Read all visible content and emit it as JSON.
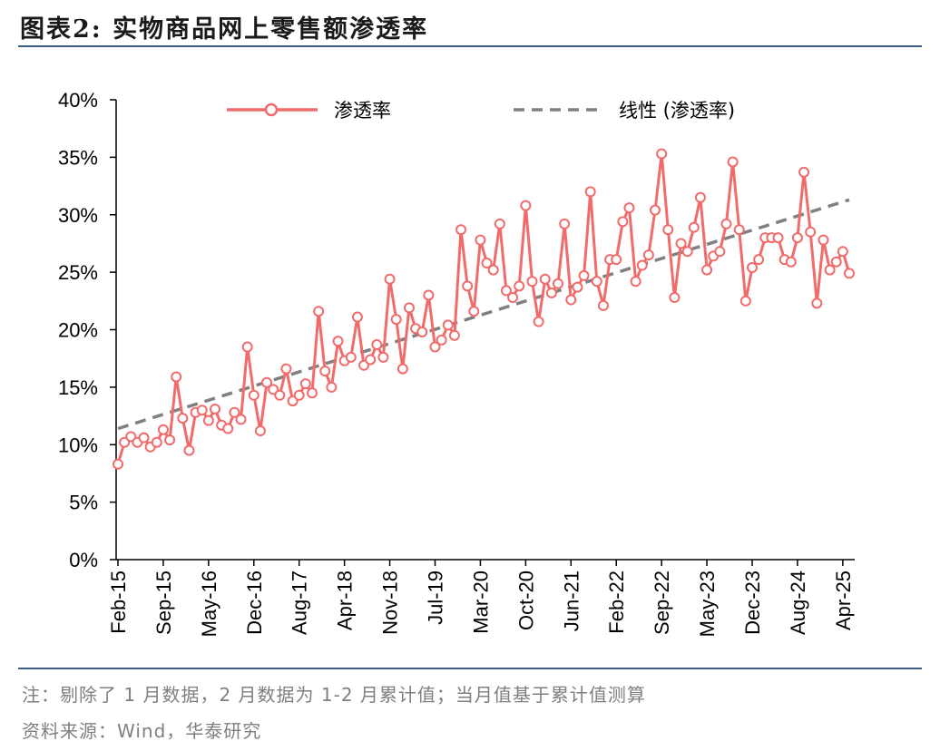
{
  "title": "图表2:  实物商品网上零售额渗透率",
  "footer": {
    "note": "注：剔除了 1 月数据，2 月数据为 1-2 月累计值；当月值基于累计值测算",
    "source": "资料来源：Wind，华泰研究"
  },
  "chart_data": {
    "type": "line",
    "ylim": [
      0,
      40
    ],
    "y_ticks": [
      "0%",
      "5%",
      "10%",
      "15%",
      "20%",
      "25%",
      "30%",
      "35%",
      "40%"
    ],
    "x_tick_labels": [
      "Feb-15",
      "Sep-15",
      "May-16",
      "Dec-16",
      "Aug-17",
      "Apr-18",
      "Nov-18",
      "Jul-19",
      "Mar-20",
      "Oct-20",
      "Jun-21",
      "Feb-22",
      "Sep-22",
      "May-23",
      "Dec-23",
      "Aug-24",
      "Apr-25"
    ],
    "x_tick_index": [
      0,
      7,
      14,
      21,
      28,
      35,
      42,
      49,
      56,
      63,
      70,
      77,
      84,
      91,
      98,
      105,
      112
    ],
    "legend_position": "top",
    "series": [
      {
        "name": "渗透率",
        "color": "#f26b6b",
        "marker": "circle",
        "values": [
          8.3,
          10.2,
          10.7,
          10.2,
          10.6,
          9.8,
          10.2,
          11.3,
          10.4,
          15.9,
          12.3,
          9.5,
          12.8,
          13.0,
          12.1,
          13.1,
          11.7,
          11.4,
          12.8,
          12.2,
          18.5,
          14.3,
          11.2,
          15.4,
          14.8,
          14.3,
          16.6,
          13.8,
          14.3,
          15.3,
          14.5,
          21.6,
          16.4,
          15.0,
          19.0,
          17.3,
          17.6,
          21.1,
          16.9,
          17.4,
          18.7,
          17.6,
          24.4,
          20.9,
          16.6,
          21.9,
          20.1,
          19.8,
          23.0,
          18.5,
          19.1,
          20.4,
          19.5,
          28.7,
          23.8,
          21.6,
          27.8,
          25.8,
          25.2,
          29.2,
          23.4,
          22.8,
          23.8,
          30.8,
          24.2,
          20.7,
          24.4,
          23.2,
          24.0,
          29.2,
          22.6,
          23.7,
          24.7,
          32.0,
          24.2,
          22.1,
          26.1,
          26.1,
          29.4,
          30.6,
          24.2,
          25.6,
          26.5,
          30.4,
          35.3,
          28.7,
          22.8,
          27.5,
          26.8,
          28.9,
          31.5,
          25.2,
          26.4,
          26.8,
          29.2,
          34.6,
          28.7,
          22.5,
          25.4,
          26.1,
          28.0,
          28.0,
          28.0,
          26.1,
          25.9,
          28.0,
          33.7,
          28.5,
          22.3,
          27.8,
          25.2,
          25.9,
          26.8,
          24.9
        ]
      },
      {
        "name": "线性 (渗透率)",
        "color": "#808080",
        "style": "dashed",
        "values": [
          11.4,
          31.3
        ]
      }
    ]
  }
}
